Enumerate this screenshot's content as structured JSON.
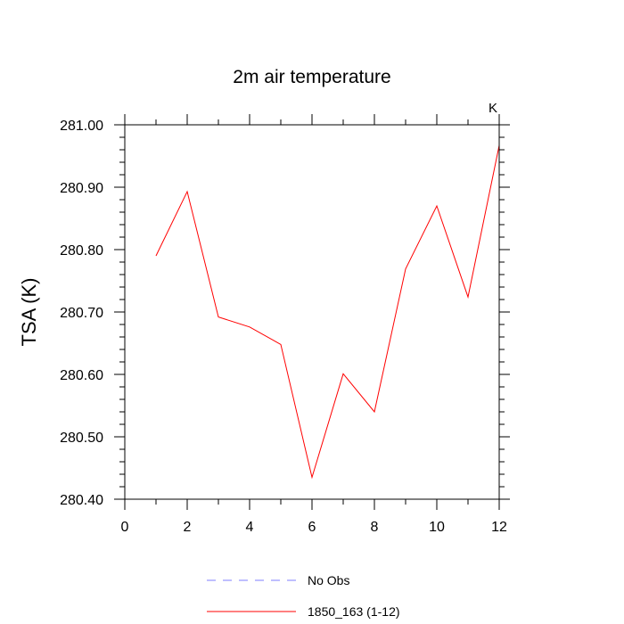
{
  "chart_data": {
    "type": "line",
    "title": "2m air temperature",
    "ylabel": "TSA  (K)",
    "xlabel": "",
    "unit_label": "K",
    "xlim": [
      0,
      12
    ],
    "ylim": [
      280.4,
      281.0
    ],
    "x_ticks": [
      0,
      2,
      4,
      6,
      8,
      10,
      12
    ],
    "x_tick_labels": [
      "0",
      "2",
      "4",
      "6",
      "8",
      "10",
      "12"
    ],
    "y_ticks": [
      280.4,
      280.5,
      280.6,
      280.7,
      280.8,
      280.9,
      281.0
    ],
    "y_tick_labels": [
      "280.40",
      "280.50",
      "280.60",
      "280.70",
      "280.80",
      "280.90",
      "281.00"
    ],
    "grid": false,
    "legend_position": "bottom",
    "series": [
      {
        "name": "No Obs",
        "color": "#7f7fff",
        "dash": "dashed",
        "x": [],
        "values": []
      },
      {
        "name": "1850_163 (1-12)",
        "color": "#ff0000",
        "dash": "solid",
        "x": [
          1,
          2,
          3,
          4,
          5,
          6,
          7,
          8,
          9,
          10,
          11,
          12
        ],
        "values": [
          280.79,
          280.893,
          280.692,
          280.676,
          280.648,
          280.435,
          280.601,
          280.54,
          280.769,
          280.87,
          280.724,
          280.967
        ]
      }
    ]
  }
}
